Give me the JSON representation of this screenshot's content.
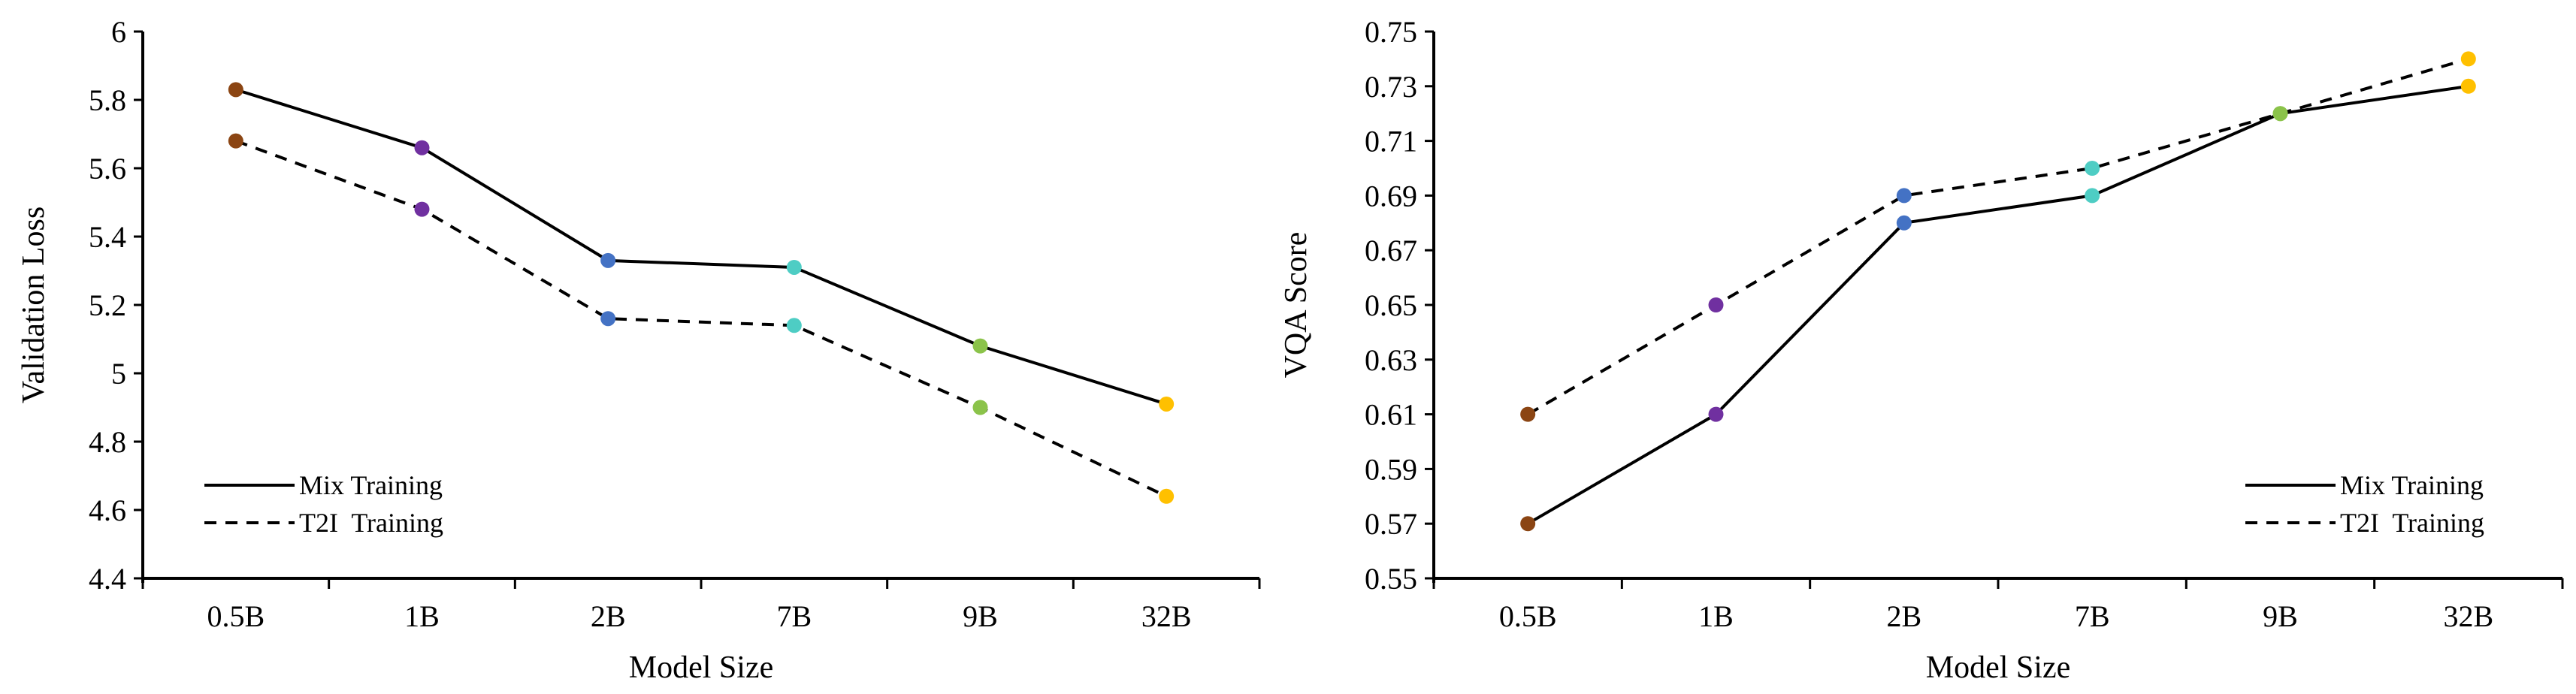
{
  "chart_data": [
    {
      "type": "line",
      "categories": [
        "0.5B",
        "1B",
        "2B",
        "7B",
        "9B",
        "32B"
      ],
      "xlabel": "Model Size",
      "ylabel": "Validation Loss",
      "ylim": [
        4.4,
        6
      ],
      "yticks": [
        "4.4",
        "4.6",
        "4.8",
        "5",
        "5.2",
        "5.4",
        "5.6",
        "5.8",
        "6"
      ],
      "legend_position": "bottom-left",
      "grid": false,
      "series": [
        {
          "name": "Mix Training",
          "style": "solid",
          "values": [
            5.83,
            5.66,
            5.33,
            5.31,
            5.08,
            4.91
          ]
        },
        {
          "name": "T2I  Training",
          "style": "dashed",
          "values": [
            5.68,
            5.48,
            5.16,
            5.14,
            4.9,
            4.64
          ]
        }
      ],
      "point_colors": [
        "#8B4513",
        "#7030A0",
        "#4472C4",
        "#4ECDC4",
        "#8BC34A",
        "#FFC000"
      ]
    },
    {
      "type": "line",
      "categories": [
        "0.5B",
        "1B",
        "2B",
        "7B",
        "9B",
        "32B"
      ],
      "xlabel": "Model Size",
      "ylabel": "VQA Score",
      "ylim": [
        0.55,
        0.75
      ],
      "yticks": [
        "0.55",
        "0.57",
        "0.59",
        "0.61",
        "0.63",
        "0.65",
        "0.67",
        "0.69",
        "0.71",
        "0.73",
        "0.75"
      ],
      "legend_position": "bottom-right",
      "grid": false,
      "series": [
        {
          "name": "Mix Training",
          "style": "solid",
          "values": [
            0.57,
            0.61,
            0.68,
            0.69,
            0.72,
            0.73
          ]
        },
        {
          "name": "T2I  Training",
          "style": "dashed",
          "values": [
            0.61,
            0.65,
            0.69,
            0.7,
            0.72,
            0.74
          ]
        }
      ],
      "point_colors": [
        "#8B4513",
        "#7030A0",
        "#4472C4",
        "#4ECDC4",
        "#8BC34A",
        "#FFC000"
      ]
    }
  ]
}
